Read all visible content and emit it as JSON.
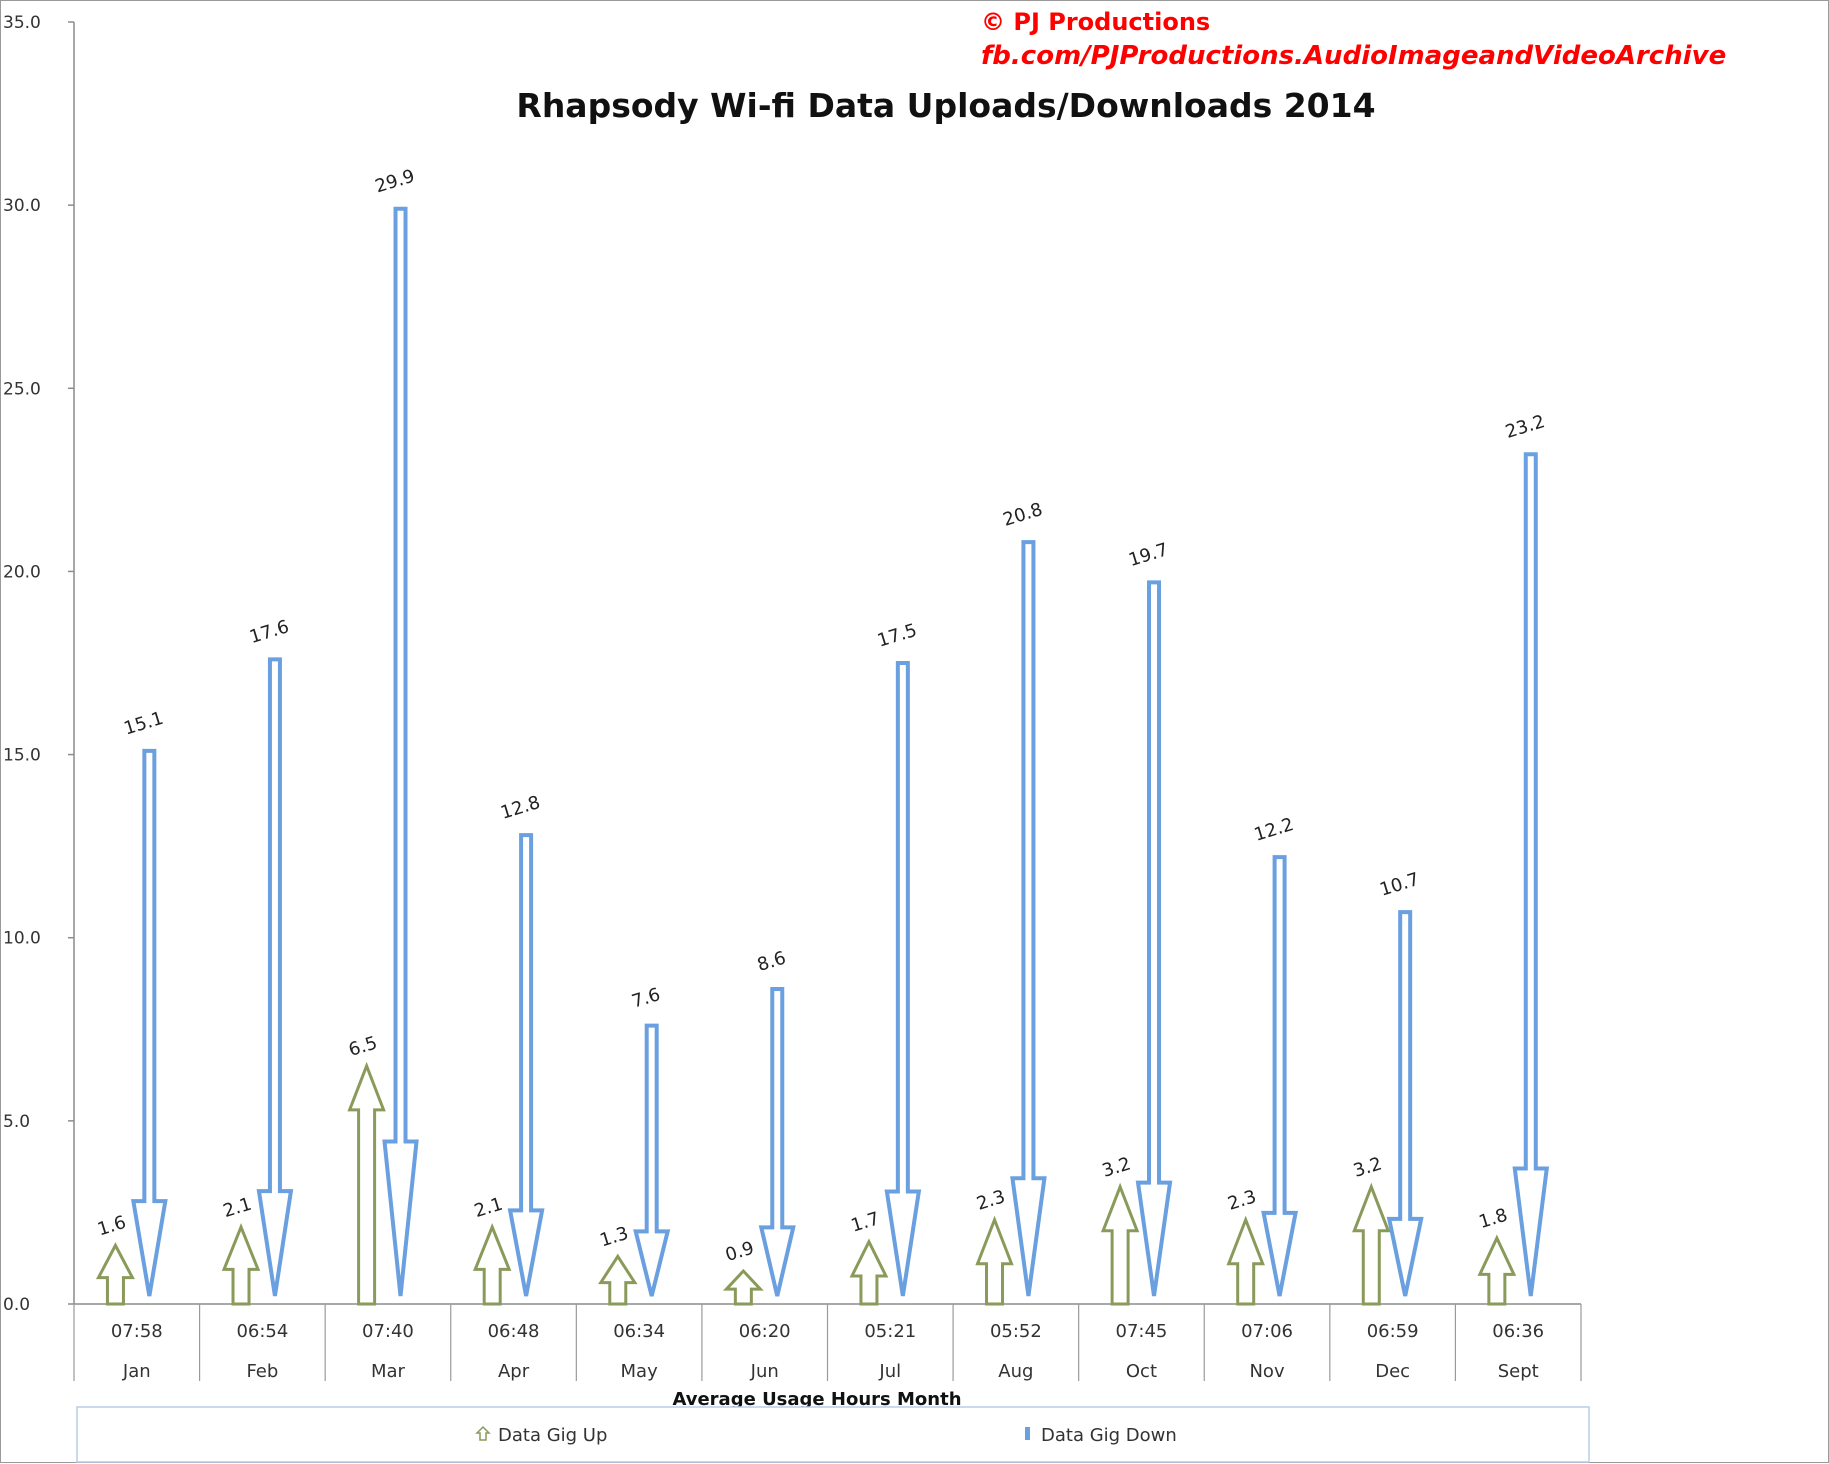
{
  "chart_data": {
    "type": "bar",
    "title": "Rhapsody Wi-fi Data Uploads/Downloads 2014",
    "credit_line1": "© PJ Productions",
    "credit_line2": "fb.com/PJProductions.AudioImageandVideoArchive",
    "xlabel": "Average Usage Hours Month",
    "ylim": [
      0,
      35
    ],
    "yticks": [
      "0.0",
      "5.0",
      "10.0",
      "15.0",
      "20.0",
      "25.0",
      "30.0",
      "35.0"
    ],
    "categories": [
      {
        "hours": "07:58",
        "month": "Jan"
      },
      {
        "hours": "06:54",
        "month": "Feb"
      },
      {
        "hours": "07:40",
        "month": "Mar"
      },
      {
        "hours": "06:48",
        "month": "Apr"
      },
      {
        "hours": "06:34",
        "month": "May"
      },
      {
        "hours": "06:20",
        "month": "Jun"
      },
      {
        "hours": "05:21",
        "month": "Jul"
      },
      {
        "hours": "05:52",
        "month": "Aug"
      },
      {
        "hours": "07:45",
        "month": "Oct"
      },
      {
        "hours": "07:06",
        "month": "Nov"
      },
      {
        "hours": "06:59",
        "month": "Dec"
      },
      {
        "hours": "06:36",
        "month": "Sept"
      }
    ],
    "series": [
      {
        "name": "Data Gig Up",
        "color": "#8a9a5b",
        "values": [
          1.6,
          2.1,
          6.5,
          2.1,
          1.3,
          0.9,
          1.7,
          2.3,
          3.2,
          2.3,
          3.2,
          1.8
        ]
      },
      {
        "name": "Data Gig Down",
        "color": "#6a9fe0",
        "values": [
          15.1,
          17.6,
          29.9,
          12.8,
          7.6,
          8.6,
          17.5,
          20.8,
          19.7,
          12.2,
          10.7,
          23.2
        ]
      }
    ],
    "grid": false,
    "legend_position": "bottom"
  }
}
